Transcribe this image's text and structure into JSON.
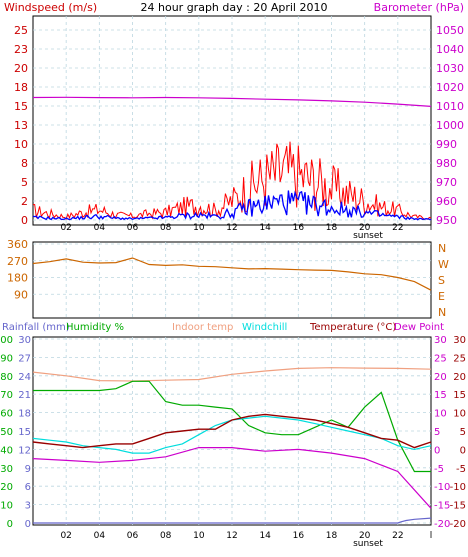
{
  "chart_data": [
    {
      "type": "line",
      "title": "24 hour graph day : 20 April 2010",
      "left_axis_label": "Windspeed (m/s)",
      "right_axis_label": "Barometer (hPa)",
      "x_tick_labels": [
        "02",
        "04",
        "06",
        "08",
        "10",
        "12",
        "14",
        "16",
        "18",
        "20",
        "22",
        "l"
      ],
      "x_annotation": "sunset",
      "left_ticks": [
        "0",
        "2",
        "5",
        "8",
        "10",
        "13",
        "15",
        "18",
        "20",
        "23",
        "25"
      ],
      "right_ticks": [
        "950",
        "960",
        "970",
        "980",
        "990",
        "1000",
        "1010",
        "1020",
        "1030",
        "1040",
        "1050"
      ],
      "ylim_left": [
        0,
        25
      ],
      "ylim_right": [
        950,
        1050
      ],
      "colors": {
        "wind_gust": "#ff0000",
        "wind_avg": "#0000ff",
        "barometer": "#cc00cc",
        "left_label": "#cc0000",
        "right_label": "#cc00cc"
      },
      "series": [
        {
          "x_hours": [
            0,
            2,
            4,
            6,
            8,
            10,
            12,
            14,
            16,
            18,
            20,
            22,
            24
          ],
          "values": [
            1014.5,
            1014.6,
            1014.4,
            1014.3,
            1014.5,
            1014.3,
            1014.0,
            1013.6,
            1013.2,
            1012.7,
            1012.0,
            1011.0,
            1009.8
          ]
        },
        {
          "x_hours": [
            0,
            1,
            2,
            3,
            4,
            5,
            6,
            7,
            8,
            9,
            10,
            11,
            12,
            13,
            14,
            15,
            16,
            17,
            18,
            19,
            20,
            21,
            22,
            23,
            24
          ],
          "values": [
            1.5,
            1.0,
            0.5,
            1.2,
            1.6,
            0.8,
            0.6,
            1.0,
            1.2,
            2.0,
            2.3,
            1.5,
            3.0,
            5.0,
            6.5,
            7.5,
            7.0,
            6.0,
            5.0,
            4.0,
            3.0,
            2.0,
            1.5,
            0.5,
            0.3
          ]
        },
        {
          "x_hours": [
            0,
            1,
            2,
            3,
            4,
            5,
            6,
            7,
            8,
            9,
            10,
            11,
            12,
            13,
            14,
            15,
            16,
            17,
            18,
            19,
            20,
            21,
            22,
            23,
            24
          ],
          "values": [
            0.4,
            0.3,
            0.2,
            0.4,
            0.6,
            0.3,
            0.2,
            0.3,
            0.4,
            0.7,
            0.8,
            0.6,
            1.2,
            2.0,
            2.6,
            3.0,
            2.8,
            2.4,
            2.0,
            1.6,
            1.2,
            0.8,
            0.5,
            0.2,
            0.1
          ]
        }
      ]
    },
    {
      "type": "line",
      "y_ticks": [
        "360",
        "270",
        "180",
        "90"
      ],
      "right_ticks": [
        "N",
        "W",
        "S",
        "E",
        "N"
      ],
      "ylim": [
        0,
        360
      ],
      "colors": {
        "direction": "#cc6600"
      },
      "series": [
        {
          "x_hours": [
            0,
            1,
            2,
            3,
            4,
            5,
            6,
            7,
            8,
            9,
            10,
            11,
            12,
            13,
            14,
            15,
            16,
            17,
            18,
            19,
            20,
            21,
            22,
            23,
            24
          ],
          "values": [
            255,
            265,
            280,
            262,
            258,
            260,
            285,
            250,
            245,
            248,
            240,
            238,
            232,
            226,
            228,
            225,
            222,
            220,
            218,
            210,
            200,
            195,
            180,
            158,
            112
          ]
        }
      ]
    },
    {
      "type": "line",
      "header_labels": {
        "rainfall": "Rainfall (mm)",
        "humidity": "Humidity %",
        "indoor": "Indoor temp",
        "windchill": "Windchill",
        "temperature": "Temperature (°C)",
        "dewpoint": "Dew Point"
      },
      "x_tick_labels": [
        "02",
        "04",
        "06",
        "08",
        "10",
        "12",
        "14",
        "16",
        "18",
        "20",
        "22",
        "l"
      ],
      "x_annotation": "sunset",
      "humidity_ticks": [
        "0",
        "10",
        "20",
        "30",
        "40",
        "50",
        "60",
        "70",
        "80",
        "90",
        "100"
      ],
      "rain_ticks": [
        "0",
        "3",
        "6",
        "9",
        "12",
        "15",
        "18",
        "21",
        "24",
        "27",
        "30"
      ],
      "right_ticks_inner": [
        "30",
        "25",
        "20",
        "15",
        "10",
        "5",
        "0",
        "-5",
        "-10",
        "-15",
        "-20"
      ],
      "right_ticks_outer": [
        "30",
        "25",
        "20",
        "15",
        "10",
        "5",
        "0",
        "-5",
        "-10",
        "-15",
        "-20"
      ],
      "ylim_temperature": [
        -20,
        30
      ],
      "ylim_humidity": [
        0,
        100
      ],
      "ylim_rainfall": [
        0,
        30
      ],
      "colors": {
        "rainfall": "#6666cc",
        "humidity": "#00aa00",
        "indoor": "#f0a080",
        "windchill": "#00dddd",
        "temperature": "#990000",
        "dewpoint": "#cc00cc"
      },
      "series": [
        {
          "x_hours": [
            0,
            2,
            4,
            6,
            8,
            10,
            12,
            14,
            16,
            18,
            20,
            22,
            24
          ],
          "values": [
            21.0,
            20.0,
            18.7,
            18.6,
            18.8,
            19.0,
            20.4,
            21.3,
            22.0,
            22.2,
            22.1,
            22.0,
            21.8
          ]
        },
        {
          "x_hours": [
            0,
            1,
            2,
            3,
            4,
            5,
            6,
            7,
            8,
            9,
            10,
            11,
            12,
            13,
            14,
            15,
            16,
            17,
            18,
            19,
            20,
            21,
            22,
            23,
            24
          ],
          "values": [
            72,
            72,
            72,
            72,
            72,
            73,
            77,
            77,
            66,
            64,
            64,
            63,
            62,
            53,
            49,
            48,
            48,
            52,
            56,
            52,
            63,
            71,
            45,
            28,
            28
          ]
        },
        {
          "x_hours": [
            0,
            1,
            2,
            3,
            4,
            5,
            6,
            7,
            8,
            9,
            10,
            11,
            12,
            13,
            14,
            15,
            16,
            17,
            18,
            19,
            20,
            21,
            22,
            23,
            24
          ],
          "values": [
            3.0,
            2.5,
            2.0,
            1.0,
            0.5,
            0.0,
            -1.0,
            -1.0,
            0.5,
            1.5,
            4.0,
            6.5,
            8.0,
            8.5,
            9.0,
            8.5,
            8.0,
            7.0,
            6.0,
            5.0,
            4.0,
            3.0,
            1.0,
            0.0,
            1.0
          ]
        },
        {
          "x_hours": [
            0,
            1,
            2,
            3,
            4,
            5,
            6,
            7,
            8,
            9,
            10,
            11,
            12,
            13,
            14,
            15,
            16,
            17,
            18,
            19,
            20,
            21,
            22,
            23,
            24
          ],
          "values": [
            2.0,
            1.5,
            1.0,
            0.5,
            1.0,
            1.5,
            1.5,
            3.0,
            4.5,
            5.0,
            5.5,
            5.5,
            8.0,
            9.0,
            9.5,
            9.0,
            8.5,
            8.0,
            7.0,
            6.0,
            4.5,
            3.0,
            2.5,
            0.5,
            2.0
          ]
        },
        {
          "x_hours": [
            0,
            2,
            4,
            6,
            8,
            10,
            12,
            14,
            16,
            18,
            20,
            22,
            24
          ],
          "values": [
            -2.5,
            -3.0,
            -3.5,
            -3.0,
            -2.0,
            0.5,
            0.5,
            -0.5,
            0.0,
            -1.0,
            -2.5,
            -6.0,
            -16.0
          ]
        },
        {
          "x_hours": [
            0,
            22.0,
            22.2,
            22.5,
            23,
            24
          ],
          "values": [
            0,
            0,
            0.2,
            0.4,
            0.6,
            0.8
          ]
        }
      ]
    }
  ]
}
